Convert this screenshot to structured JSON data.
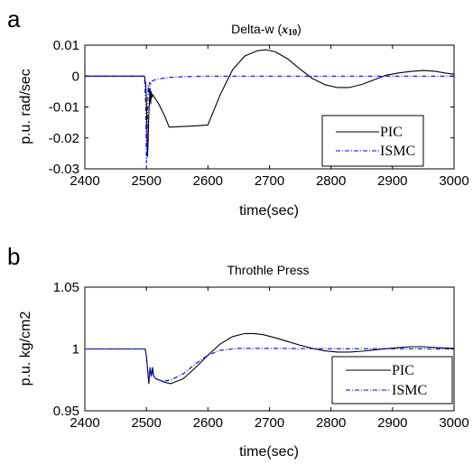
{
  "chart_data": [
    {
      "type": "line",
      "panel_label": "a",
      "title_main": "Delta-w (",
      "title_math": "x",
      "title_sub": "10",
      "title_close": ")",
      "xlabel": "time(sec)",
      "ylabel": "p.u. rad/sec",
      "xlim": [
        2400,
        3000
      ],
      "ylim": [
        -0.03,
        0.01
      ],
      "xticks": [
        2400,
        2500,
        2600,
        2700,
        2800,
        2900,
        3000
      ],
      "xtick_labels": [
        "2400",
        "2500",
        "2600",
        "2700",
        "2800",
        "2900",
        "3000"
      ],
      "yticks": [
        0.01,
        0,
        -0.01,
        -0.02,
        -0.03
      ],
      "ytick_labels": [
        "0.01",
        "0",
        "-0.01",
        "-0.02",
        "-0.03"
      ],
      "grid": false,
      "legend_position": "lower-right",
      "series": [
        {
          "name": "PIC",
          "color": "#000000",
          "style": "solid",
          "x": [
            2400,
            2497,
            2499,
            2500,
            2501,
            2502,
            2503,
            2504,
            2505,
            2506,
            2507,
            2508,
            2509,
            2510,
            2512,
            2520,
            2530,
            2537,
            2560,
            2580,
            2600,
            2620,
            2640,
            2660,
            2680,
            2695,
            2710,
            2730,
            2750,
            2770,
            2790,
            2810,
            2830,
            2850,
            2870,
            2890,
            2910,
            2930,
            2950,
            2960,
            2970,
            2985,
            3000
          ],
          "y": [
            0,
            0,
            -0.003,
            -0.008,
            -0.018,
            -0.026,
            -0.02,
            -0.012,
            -0.008,
            -0.004,
            -0.009,
            -0.005,
            -0.007,
            -0.006,
            -0.0065,
            -0.009,
            -0.013,
            -0.0165,
            -0.0163,
            -0.0161,
            -0.0158,
            -0.006,
            0.002,
            0.0065,
            0.0082,
            0.0085,
            0.0078,
            0.0055,
            0.0022,
            -0.0008,
            -0.0028,
            -0.0037,
            -0.0037,
            -0.0027,
            -0.0012,
            0.0003,
            0.001,
            0.0015,
            0.0018,
            0.0017,
            0.0015,
            0.001,
            0.0006
          ]
        },
        {
          "name": "ISMC",
          "color": "#0000ff",
          "style": "dashdot",
          "x": [
            2400,
            2497,
            2499,
            2500,
            2501,
            2502,
            2503,
            2504,
            2505,
            2506,
            2508,
            2510,
            2520,
            2540,
            2560,
            2600,
            2700,
            2800,
            2900,
            3000
          ],
          "y": [
            0,
            0,
            -0.01,
            -0.028,
            -0.022,
            -0.012,
            -0.003,
            -0.006,
            -0.002,
            -0.003,
            -0.002,
            -0.0015,
            -0.0009,
            -0.0004,
            -0.0002,
            0,
            0,
            0,
            0,
            0
          ]
        }
      ]
    },
    {
      "type": "line",
      "panel_label": "b",
      "title_main": "Throthle Press",
      "xlabel": "time(sec)",
      "ylabel": "p.u. kg/cm2",
      "xlim": [
        2400,
        3000
      ],
      "ylim": [
        0.95,
        1.05
      ],
      "xticks": [
        2400,
        2500,
        2600,
        2700,
        2800,
        2900,
        3000
      ],
      "xtick_labels": [
        "2400",
        "2500",
        "2600",
        "2700",
        "2800",
        "2900",
        "3000"
      ],
      "yticks": [
        1.05,
        1,
        0.95
      ],
      "ytick_labels": [
        "1.05",
        "1",
        "0.95"
      ],
      "grid": false,
      "legend_position": "lower-right",
      "series": [
        {
          "name": "PIC",
          "color": "#000000",
          "style": "solid",
          "x": [
            2400,
            2498,
            2500,
            2502,
            2504,
            2506,
            2508,
            2510,
            2512,
            2515,
            2520,
            2530,
            2540,
            2560,
            2580,
            2600,
            2620,
            2640,
            2660,
            2675,
            2690,
            2710,
            2730,
            2750,
            2770,
            2790,
            2810,
            2830,
            2850,
            2870,
            2890,
            2910,
            2930,
            2950,
            2970,
            3000
          ],
          "y": [
            1,
            1,
            0.994,
            0.983,
            0.972,
            0.985,
            0.978,
            0.985,
            0.978,
            0.976,
            0.975,
            0.973,
            0.972,
            0.976,
            0.985,
            0.995,
            1.004,
            1.01,
            1.0125,
            1.0125,
            1.0115,
            1.009,
            1.006,
            1.003,
            1.0005,
            0.9985,
            0.9975,
            0.9975,
            0.9982,
            0.9992,
            1.0002,
            1.0012,
            1.0018,
            1.0018,
            1.0012,
            1.0005
          ]
        },
        {
          "name": "ISMC",
          "color": "#0000ff",
          "style": "dashdot",
          "x": [
            2400,
            2498,
            2500,
            2502,
            2504,
            2506,
            2508,
            2510,
            2512,
            2515,
            2520,
            2530,
            2540,
            2560,
            2580,
            2600,
            2620,
            2650,
            2700,
            2800,
            2900,
            3000
          ],
          "y": [
            1,
            1,
            0.994,
            0.984,
            0.975,
            0.985,
            0.978,
            0.982,
            0.978,
            0.976,
            0.975,
            0.974,
            0.975,
            0.98,
            0.988,
            0.995,
            0.999,
            1.0005,
            1.0005,
            1.0002,
            1.0002,
            1
          ]
        }
      ]
    }
  ]
}
